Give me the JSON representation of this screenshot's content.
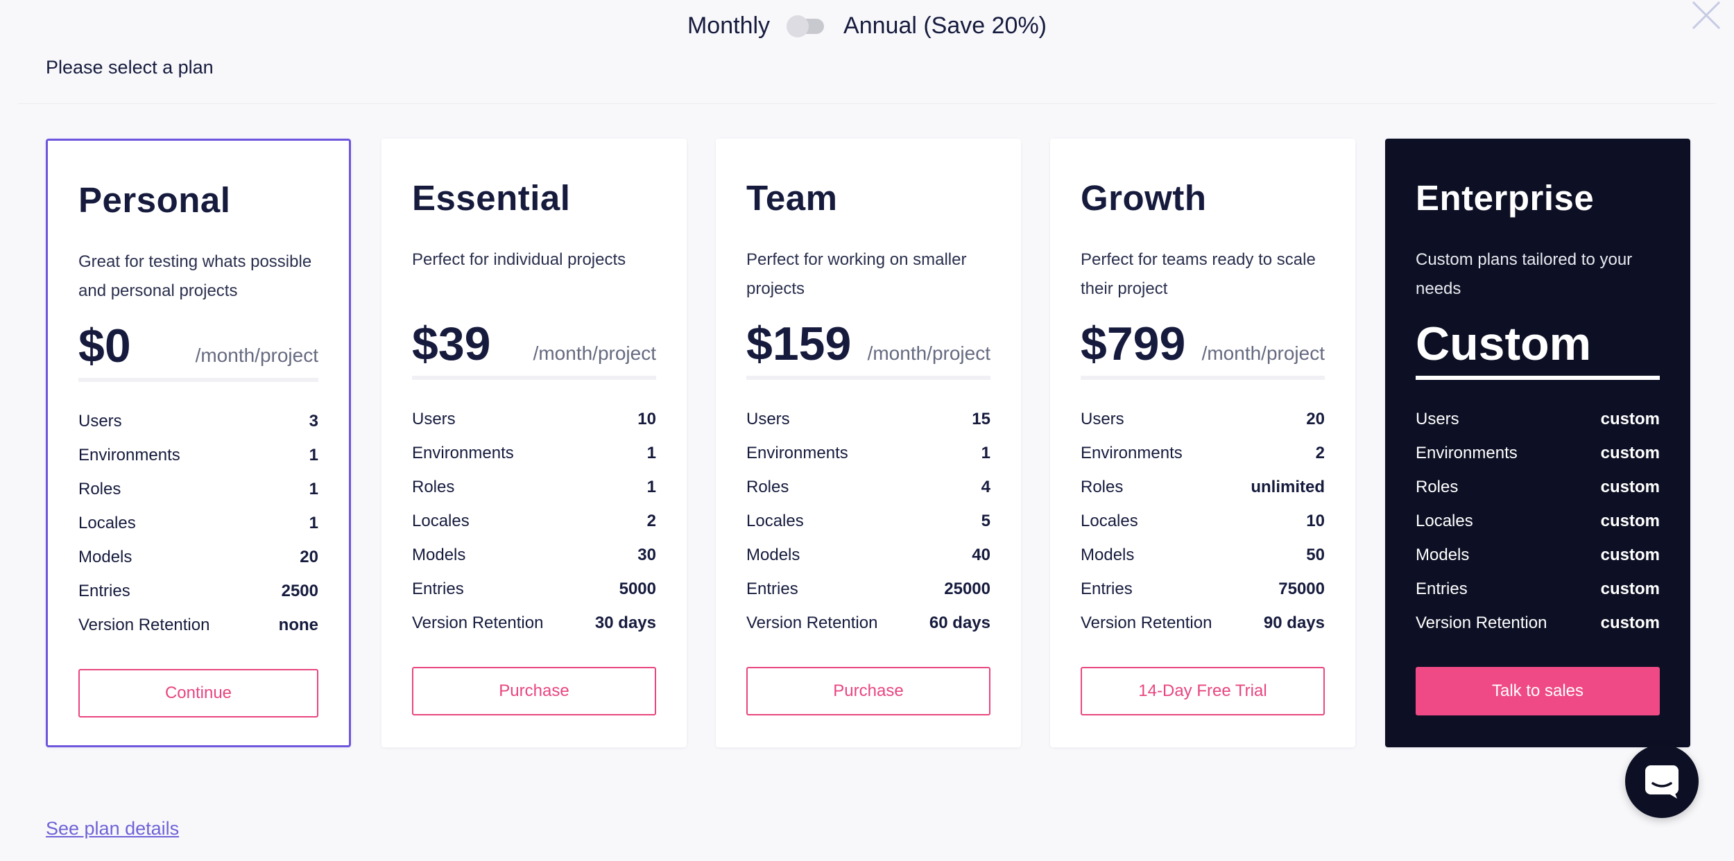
{
  "billing": {
    "monthly": "Monthly",
    "annual": "Annual (Save 20%)"
  },
  "subtitle": "Please select a plan",
  "see_details": "See plan details",
  "plans": [
    {
      "name": "Personal",
      "desc": "Great for testing whats possible and personal projects",
      "price": "$0",
      "per": "/month/project",
      "features": [
        {
          "label": "Users",
          "value": "3"
        },
        {
          "label": "Environments",
          "value": "1"
        },
        {
          "label": "Roles",
          "value": "1"
        },
        {
          "label": "Locales",
          "value": "1"
        },
        {
          "label": "Models",
          "value": "20"
        },
        {
          "label": "Entries",
          "value": "2500"
        },
        {
          "label": "Version Retention",
          "value": "none"
        }
      ],
      "cta": "Continue"
    },
    {
      "name": "Essential",
      "desc": "Perfect for individual projects",
      "price": "$39",
      "per": "/month/project",
      "features": [
        {
          "label": "Users",
          "value": "10"
        },
        {
          "label": "Environments",
          "value": "1"
        },
        {
          "label": "Roles",
          "value": "1"
        },
        {
          "label": "Locales",
          "value": "2"
        },
        {
          "label": "Models",
          "value": "30"
        },
        {
          "label": "Entries",
          "value": "5000"
        },
        {
          "label": "Version Retention",
          "value": "30 days"
        }
      ],
      "cta": "Purchase"
    },
    {
      "name": "Team",
      "desc": "Perfect for working on smaller projects",
      "price": "$159",
      "per": "/month/project",
      "features": [
        {
          "label": "Users",
          "value": "15"
        },
        {
          "label": "Environments",
          "value": "1"
        },
        {
          "label": "Roles",
          "value": "4"
        },
        {
          "label": "Locales",
          "value": "5"
        },
        {
          "label": "Models",
          "value": "40"
        },
        {
          "label": "Entries",
          "value": "25000"
        },
        {
          "label": "Version Retention",
          "value": "60 days"
        }
      ],
      "cta": "Purchase"
    },
    {
      "name": "Growth",
      "desc": "Perfect for teams ready to scale their project",
      "price": "$799",
      "per": "/month/project",
      "features": [
        {
          "label": "Users",
          "value": "20"
        },
        {
          "label": "Environments",
          "value": "2"
        },
        {
          "label": "Roles",
          "value": "unlimited"
        },
        {
          "label": "Locales",
          "value": "10"
        },
        {
          "label": "Models",
          "value": "50"
        },
        {
          "label": "Entries",
          "value": "75000"
        },
        {
          "label": "Version Retention",
          "value": "90 days"
        }
      ],
      "cta": "14-Day Free Trial"
    },
    {
      "name": "Enterprise",
      "desc": "Custom plans tailored to your needs",
      "price": "Custom",
      "per": "",
      "features": [
        {
          "label": "Users",
          "value": "custom"
        },
        {
          "label": "Environments",
          "value": "custom"
        },
        {
          "label": "Roles",
          "value": "custom"
        },
        {
          "label": "Locales",
          "value": "custom"
        },
        {
          "label": "Models",
          "value": "custom"
        },
        {
          "label": "Entries",
          "value": "custom"
        },
        {
          "label": "Version Retention",
          "value": "custom"
        }
      ],
      "cta": "Talk to sales"
    }
  ],
  "colors": {
    "accent": "#ef4a85",
    "selected_border": "#6e55de",
    "dark_card": "#0d1024",
    "link": "#6e62d6"
  },
  "icons": {
    "close": "close-icon",
    "chat": "chat-icon"
  }
}
